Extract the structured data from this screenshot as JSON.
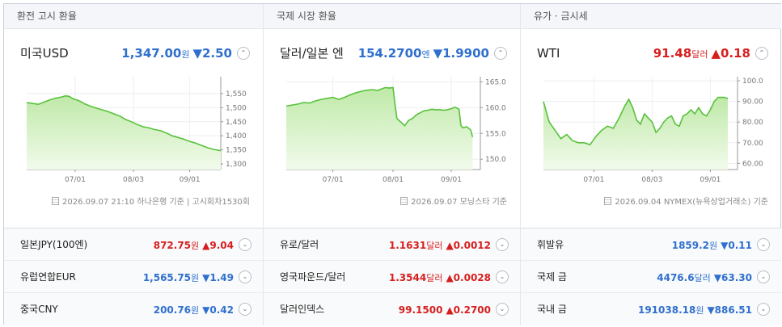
{
  "panels": [
    {
      "section_title": "환전 고시 환율",
      "name": "미국USD",
      "value": "1,347.00",
      "unit": "원",
      "change": "▼2.50",
      "direction": "down",
      "toggle": "⌃",
      "source": "2026.09.07 21:10 하나은행 기준 | 고시회차1530회",
      "rows": [
        {
          "name": "일본JPY(100엔)",
          "value": "872.75",
          "unit": "원",
          "change": "▲9.04",
          "direction": "up"
        },
        {
          "name": "유럽연합EUR",
          "value": "1,565.75",
          "unit": "원",
          "change": "▼1.49",
          "direction": "down"
        },
        {
          "name": "중국CNY",
          "value": "200.76",
          "unit": "원",
          "change": "▼0.42",
          "direction": "down"
        }
      ]
    },
    {
      "section_title": "국제 시장 환율",
      "name": "달러/일본 엔",
      "value": "154.2700",
      "unit": "엔",
      "change": "▼1.9900",
      "direction": "down",
      "toggle": "⌃",
      "source": "2026.09.07 모닝스타 기준",
      "rows": [
        {
          "name": "유로/달러",
          "value": "1.1631",
          "unit": "달러",
          "change": "▲0.0012",
          "direction": "up"
        },
        {
          "name": "영국파운드/달러",
          "value": "1.3544",
          "unit": "달러",
          "change": "▲0.0028",
          "direction": "up"
        },
        {
          "name": "달러인덱스",
          "value": "99.1500",
          "unit": "",
          "change": "▲0.2700",
          "direction": "up"
        }
      ]
    },
    {
      "section_title": "유가 · 금시세",
      "name": "WTI",
      "value": "91.48",
      "unit": "달러",
      "change": "▲0.18",
      "direction": "up",
      "toggle": "⌃",
      "source": "2026.09.04 NYMEX(뉴욕상업거래소) 기준",
      "rows": [
        {
          "name": "휘발유",
          "value": "1859.2",
          "unit": "원",
          "change": "▼0.11",
          "direction": "down"
        },
        {
          "name": "국제 금",
          "value": "4476.6",
          "unit": "달러",
          "change": "▼63.30",
          "direction": "down"
        },
        {
          "name": "국내 금",
          "value": "191038.18",
          "unit": "원",
          "change": "▼886.51",
          "direction": "down"
        }
      ]
    }
  ],
  "row_toggle": "⌄",
  "colors": {
    "down": "#2f6fce",
    "up": "#d71e1e",
    "line": "#57c23a",
    "area_top": "#bfe9a8",
    "area_bottom": "#f2fbec"
  },
  "chart_data": [
    {
      "type": "area",
      "title": "",
      "x_ticks": [
        "07/01",
        "08/03",
        "09/01"
      ],
      "y_ticks": [
        "1,550",
        "1,500",
        "1,450",
        "1,400",
        "1,350",
        "1,300"
      ],
      "ylim": [
        1280,
        1610
      ],
      "x_range": [
        0,
        100
      ],
      "tick_positions": [
        25,
        55,
        84
      ],
      "points": [
        [
          0,
          1518
        ],
        [
          3,
          1515
        ],
        [
          6,
          1512
        ],
        [
          9,
          1520
        ],
        [
          12,
          1528
        ],
        [
          15,
          1534
        ],
        [
          18,
          1538
        ],
        [
          20,
          1542
        ],
        [
          22,
          1540
        ],
        [
          24,
          1531
        ],
        [
          26,
          1527
        ],
        [
          28,
          1521
        ],
        [
          30,
          1513
        ],
        [
          33,
          1505
        ],
        [
          36,
          1498
        ],
        [
          39,
          1492
        ],
        [
          42,
          1486
        ],
        [
          45,
          1478
        ],
        [
          48,
          1470
        ],
        [
          51,
          1458
        ],
        [
          54,
          1450
        ],
        [
          57,
          1440
        ],
        [
          60,
          1432
        ],
        [
          63,
          1428
        ],
        [
          66,
          1422
        ],
        [
          69,
          1418
        ],
        [
          72,
          1410
        ],
        [
          75,
          1400
        ],
        [
          78,
          1394
        ],
        [
          81,
          1388
        ],
        [
          84,
          1380
        ],
        [
          87,
          1374
        ],
        [
          90,
          1366
        ],
        [
          93,
          1358
        ],
        [
          96,
          1352
        ],
        [
          100,
          1347
        ]
      ],
      "grid": true,
      "legend": "none"
    },
    {
      "type": "area",
      "title": "",
      "x_ticks": [
        "07/01",
        "08/01",
        "09/01"
      ],
      "y_ticks": [
        "165.00",
        "160.00",
        "155.00",
        "150.00"
      ],
      "ylim": [
        148,
        166
      ],
      "x_range": [
        0,
        100
      ],
      "tick_positions": [
        24,
        55,
        85
      ],
      "points": [
        [
          0,
          160.3
        ],
        [
          3,
          160.5
        ],
        [
          6,
          160.7
        ],
        [
          9,
          161.0
        ],
        [
          12,
          160.9
        ],
        [
          15,
          161.3
        ],
        [
          18,
          161.6
        ],
        [
          21,
          161.8
        ],
        [
          24,
          162.0
        ],
        [
          27,
          161.6
        ],
        [
          30,
          162.0
        ],
        [
          33,
          162.5
        ],
        [
          36,
          162.9
        ],
        [
          39,
          163.2
        ],
        [
          42,
          163.4
        ],
        [
          45,
          163.5
        ],
        [
          47,
          163.3
        ],
        [
          49,
          163.6
        ],
        [
          51,
          163.9
        ],
        [
          53,
          163.8
        ],
        [
          55,
          163.9
        ],
        [
          56,
          160.7
        ],
        [
          57,
          157.9
        ],
        [
          59,
          157.2
        ],
        [
          61,
          156.5
        ],
        [
          63,
          157.5
        ],
        [
          65,
          157.9
        ],
        [
          67,
          158.6
        ],
        [
          69,
          159.0
        ],
        [
          71,
          159.4
        ],
        [
          73,
          159.5
        ],
        [
          75,
          159.7
        ],
        [
          77,
          159.6
        ],
        [
          79,
          159.6
        ],
        [
          81,
          159.5
        ],
        [
          83,
          159.6
        ],
        [
          85,
          159.8
        ],
        [
          87,
          160.1
        ],
        [
          89,
          159.7
        ],
        [
          90,
          156.5
        ],
        [
          91,
          156.1
        ],
        [
          93,
          156.3
        ],
        [
          95,
          155.7
        ],
        [
          96,
          154.3
        ]
      ],
      "grid": true,
      "legend": "none"
    },
    {
      "type": "area",
      "title": "",
      "x_ticks": [
        "07/01",
        "08/03",
        "09/01"
      ],
      "y_ticks": [
        "100.00",
        "90.00",
        "80.00",
        "70.00",
        "60.00"
      ],
      "ylim": [
        57,
        102
      ],
      "x_range": [
        0,
        100
      ],
      "tick_positions": [
        26,
        56,
        86
      ],
      "points": [
        [
          0,
          90
        ],
        [
          3,
          80
        ],
        [
          6,
          76
        ],
        [
          9,
          72
        ],
        [
          12,
          74
        ],
        [
          15,
          71
        ],
        [
          18,
          70
        ],
        [
          21,
          70
        ],
        [
          24,
          69
        ],
        [
          27,
          73
        ],
        [
          30,
          76
        ],
        [
          33,
          78
        ],
        [
          36,
          77
        ],
        [
          39,
          82
        ],
        [
          42,
          88
        ],
        [
          44,
          91
        ],
        [
          46,
          87
        ],
        [
          48,
          81
        ],
        [
          50,
          79
        ],
        [
          52,
          84
        ],
        [
          54,
          82
        ],
        [
          56,
          80
        ],
        [
          58,
          75
        ],
        [
          60,
          77
        ],
        [
          62,
          80
        ],
        [
          64,
          82
        ],
        [
          66,
          83
        ],
        [
          68,
          79
        ],
        [
          70,
          78
        ],
        [
          72,
          83
        ],
        [
          74,
          84
        ],
        [
          76,
          86
        ],
        [
          78,
          84
        ],
        [
          80,
          87
        ],
        [
          82,
          84
        ],
        [
          84,
          83
        ],
        [
          86,
          86
        ],
        [
          88,
          90
        ],
        [
          90,
          92
        ],
        [
          93,
          92
        ],
        [
          95,
          91.48
        ]
      ],
      "grid": true,
      "legend": "none"
    }
  ]
}
